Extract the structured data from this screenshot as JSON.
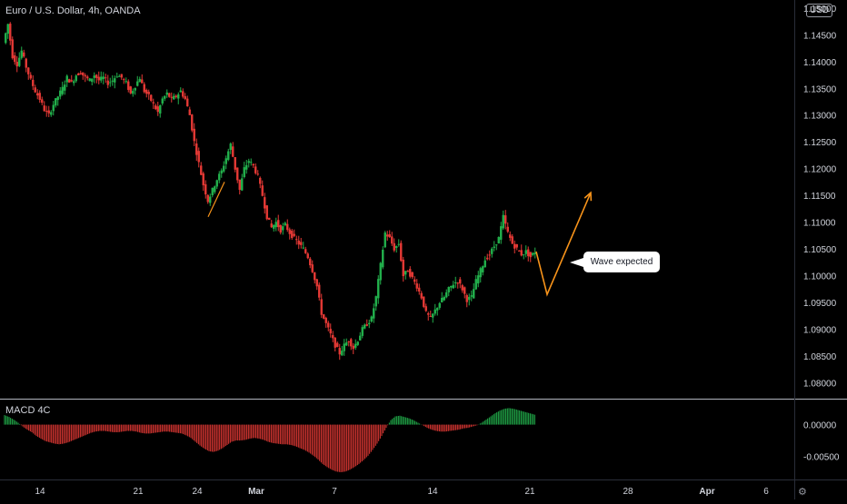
{
  "header": {
    "title": "Euro / U.S. Dollar, 4h, OANDA",
    "currency": "USD"
  },
  "macd_panel": {
    "label": "MACD 4C",
    "ticks": [
      "0.00000",
      "-0.00500"
    ]
  },
  "annotation": {
    "text": "Wave expected"
  },
  "icons": {
    "settings": "gear-icon"
  },
  "colors": {
    "up": "#26a69a",
    "up_bright": "#22b14c",
    "down": "#e53935",
    "wave": "#f7931a",
    "background": "#000000",
    "axis_text": "#d1d4dc"
  },
  "chart_data": [
    {
      "type": "candlestick",
      "title": "Euro / U.S. Dollar, 4h, OANDA",
      "xlabel": "",
      "ylabel": "",
      "x_ticks": [
        "14",
        "21",
        "24",
        "Mar",
        "7",
        "14",
        "21",
        "28",
        "Apr",
        "6"
      ],
      "y_ticks": [
        "1.15000",
        "1.14500",
        "1.14000",
        "1.13500",
        "1.13000",
        "1.12500",
        "1.12000",
        "1.11500",
        "1.11000",
        "1.10500",
        "1.10000",
        "1.09500",
        "1.09000",
        "1.08500",
        "1.08000"
      ],
      "ylim": [
        1.0772,
        1.1515
      ],
      "price_path": [
        [
          0,
          1.1435
        ],
        [
          5,
          1.147
        ],
        [
          10,
          1.141
        ],
        [
          15,
          1.1395
        ],
        [
          20,
          1.142
        ],
        [
          25,
          1.139
        ],
        [
          30,
          1.1365
        ],
        [
          35,
          1.1345
        ],
        [
          40,
          1.133
        ],
        [
          45,
          1.131
        ],
        [
          50,
          1.13
        ],
        [
          55,
          1.132
        ],
        [
          60,
          1.1335
        ],
        [
          65,
          1.135
        ],
        [
          70,
          1.137
        ],
        [
          75,
          1.136
        ],
        [
          80,
          1.1375
        ],
        [
          85,
          1.138
        ],
        [
          90,
          1.137
        ],
        [
          95,
          1.1365
        ],
        [
          100,
          1.1375
        ],
        [
          105,
          1.1365
        ],
        [
          110,
          1.137
        ],
        [
          115,
          1.136
        ],
        [
          120,
          1.1365
        ],
        [
          125,
          1.1375
        ],
        [
          130,
          1.137
        ],
        [
          135,
          1.136
        ],
        [
          140,
          1.134
        ],
        [
          145,
          1.1355
        ],
        [
          150,
          1.137
        ],
        [
          155,
          1.1345
        ],
        [
          160,
          1.1335
        ],
        [
          165,
          1.132
        ],
        [
          170,
          1.1305
        ],
        [
          175,
          1.133
        ],
        [
          180,
          1.134
        ],
        [
          185,
          1.133
        ],
        [
          190,
          1.1335
        ],
        [
          195,
          1.1345
        ],
        [
          200,
          1.133
        ],
        [
          205,
          1.13
        ],
        [
          210,
          1.125
        ],
        [
          215,
          1.121
        ],
        [
          220,
          1.117
        ],
        [
          225,
          1.114
        ],
        [
          230,
          1.116
        ],
        [
          235,
          1.118
        ],
        [
          240,
          1.1195
        ],
        [
          245,
          1.122
        ],
        [
          250,
          1.1245
        ],
        [
          255,
          1.12
        ],
        [
          260,
          1.116
        ],
        [
          265,
          1.12
        ],
        [
          270,
          1.1215
        ],
        [
          275,
          1.1205
        ],
        [
          280,
          1.1185
        ],
        [
          285,
          1.115
        ],
        [
          290,
          1.111
        ],
        [
          295,
          1.109
        ],
        [
          300,
          1.11
        ],
        [
          305,
          1.1085
        ],
        [
          310,
          1.1095
        ],
        [
          315,
          1.108
        ],
        [
          320,
          1.107
        ],
        [
          325,
          1.106
        ],
        [
          330,
          1.105
        ],
        [
          335,
          1.1035
        ],
        [
          340,
          1.101
        ],
        [
          345,
          1.098
        ],
        [
          350,
          1.093
        ],
        [
          355,
          1.091
        ],
        [
          360,
          1.089
        ],
        [
          365,
          1.087
        ],
        [
          370,
          1.0855
        ],
        [
          375,
          1.087
        ],
        [
          380,
          1.088
        ],
        [
          385,
          1.0865
        ],
        [
          390,
          1.088
        ],
        [
          395,
          1.09
        ],
        [
          400,
          1.091
        ],
        [
          405,
          1.092
        ],
        [
          410,
          1.096
        ],
        [
          415,
          1.102
        ],
        [
          420,
          1.108
        ],
        [
          425,
          1.107
        ],
        [
          430,
          1.105
        ],
        [
          435,
          1.106
        ],
        [
          440,
          1.1
        ],
        [
          445,
          1.101
        ],
        [
          450,
          1.0995
        ],
        [
          455,
          1.098
        ],
        [
          460,
          1.096
        ],
        [
          465,
          1.093
        ],
        [
          470,
          1.092
        ],
        [
          475,
          1.0935
        ],
        [
          480,
          1.095
        ],
        [
          485,
          1.096
        ],
        [
          490,
          1.0975
        ],
        [
          495,
          1.0985
        ],
        [
          500,
          1.099
        ],
        [
          505,
          1.0975
        ],
        [
          510,
          1.0955
        ],
        [
          515,
          1.096
        ],
        [
          520,
          1.099
        ],
        [
          525,
          1.101
        ],
        [
          530,
          1.103
        ],
        [
          535,
          1.104
        ],
        [
          540,
          1.1055
        ],
        [
          545,
          1.107
        ],
        [
          550,
          1.111
        ],
        [
          555,
          1.108
        ],
        [
          560,
          1.106
        ],
        [
          565,
          1.105
        ],
        [
          570,
          1.104
        ],
        [
          575,
          1.1045
        ],
        [
          580,
          1.1035
        ],
        [
          585,
          1.1045
        ]
      ],
      "wave_path": [
        [
          585,
          1.1045
        ],
        [
          597,
          1.0965
        ],
        [
          645,
          1.1155
        ]
      ],
      "highlight_path": [
        [
          224,
          1.111
        ],
        [
          242,
          1.1175
        ]
      ]
    },
    {
      "type": "histogram",
      "name": "MACD 4C",
      "ylim": [
        -0.0085,
        0.0038
      ],
      "y_ticks": [
        0.0,
        -0.005
      ],
      "values": [
        [
          0,
          0.0015
        ],
        [
          5,
          0.0012
        ],
        [
          10,
          0.0008
        ],
        [
          15,
          0.0003
        ],
        [
          20,
          -0.0003
        ],
        [
          25,
          -0.0008
        ],
        [
          30,
          -0.0012
        ],
        [
          35,
          -0.0018
        ],
        [
          40,
          -0.0022
        ],
        [
          45,
          -0.0026
        ],
        [
          50,
          -0.0028
        ],
        [
          55,
          -0.003
        ],
        [
          60,
          -0.0031
        ],
        [
          65,
          -0.003
        ],
        [
          70,
          -0.0028
        ],
        [
          75,
          -0.0025
        ],
        [
          80,
          -0.0022
        ],
        [
          85,
          -0.0019
        ],
        [
          90,
          -0.0016
        ],
        [
          95,
          -0.0013
        ],
        [
          100,
          -0.0011
        ],
        [
          105,
          -0.001
        ],
        [
          110,
          -0.001
        ],
        [
          115,
          -0.0011
        ],
        [
          120,
          -0.0012
        ],
        [
          125,
          -0.0012
        ],
        [
          130,
          -0.0011
        ],
        [
          135,
          -0.001
        ],
        [
          140,
          -0.001
        ],
        [
          145,
          -0.0011
        ],
        [
          150,
          -0.0013
        ],
        [
          155,
          -0.0014
        ],
        [
          160,
          -0.0014
        ],
        [
          165,
          -0.0013
        ],
        [
          170,
          -0.0012
        ],
        [
          175,
          -0.0011
        ],
        [
          180,
          -0.0011
        ],
        [
          185,
          -0.0012
        ],
        [
          190,
          -0.0013
        ],
        [
          195,
          -0.0014
        ],
        [
          200,
          -0.0017
        ],
        [
          205,
          -0.0021
        ],
        [
          210,
          -0.0027
        ],
        [
          215,
          -0.0033
        ],
        [
          220,
          -0.0038
        ],
        [
          225,
          -0.0042
        ],
        [
          230,
          -0.0043
        ],
        [
          235,
          -0.0041
        ],
        [
          240,
          -0.0037
        ],
        [
          245,
          -0.0032
        ],
        [
          250,
          -0.0027
        ],
        [
          255,
          -0.0025
        ],
        [
          260,
          -0.0025
        ],
        [
          265,
          -0.0024
        ],
        [
          270,
          -0.0022
        ],
        [
          275,
          -0.0021
        ],
        [
          280,
          -0.0022
        ],
        [
          285,
          -0.0024
        ],
        [
          290,
          -0.0027
        ],
        [
          295,
          -0.0029
        ],
        [
          300,
          -0.003
        ],
        [
          305,
          -0.0031
        ],
        [
          310,
          -0.0031
        ],
        [
          315,
          -0.0032
        ],
        [
          320,
          -0.0034
        ],
        [
          325,
          -0.0037
        ],
        [
          330,
          -0.004
        ],
        [
          335,
          -0.0044
        ],
        [
          340,
          -0.0049
        ],
        [
          345,
          -0.0055
        ],
        [
          350,
          -0.0062
        ],
        [
          355,
          -0.0067
        ],
        [
          360,
          -0.0071
        ],
        [
          365,
          -0.0074
        ],
        [
          370,
          -0.0075
        ],
        [
          375,
          -0.0074
        ],
        [
          380,
          -0.0071
        ],
        [
          385,
          -0.0067
        ],
        [
          390,
          -0.0062
        ],
        [
          395,
          -0.0056
        ],
        [
          400,
          -0.0049
        ],
        [
          405,
          -0.004
        ],
        [
          410,
          -0.003
        ],
        [
          415,
          -0.0018
        ],
        [
          420,
          -0.0005
        ],
        [
          425,
          0.0007
        ],
        [
          430,
          0.0013
        ],
        [
          435,
          0.0014
        ],
        [
          440,
          0.0012
        ],
        [
          445,
          0.001
        ],
        [
          450,
          0.0007
        ],
        [
          455,
          0.0003
        ],
        [
          460,
          -0.0001
        ],
        [
          465,
          -0.0005
        ],
        [
          470,
          -0.0008
        ],
        [
          475,
          -0.001
        ],
        [
          480,
          -0.0011
        ],
        [
          485,
          -0.0011
        ],
        [
          490,
          -0.001
        ],
        [
          495,
          -0.0009
        ],
        [
          500,
          -0.0008
        ],
        [
          505,
          -0.0006
        ],
        [
          510,
          -0.0005
        ],
        [
          515,
          -0.0003
        ],
        [
          520,
          -0.0001
        ],
        [
          525,
          0.0003
        ],
        [
          530,
          0.0008
        ],
        [
          535,
          0.0013
        ],
        [
          540,
          0.0018
        ],
        [
          545,
          0.0022
        ],
        [
          550,
          0.0025
        ],
        [
          555,
          0.0026
        ],
        [
          560,
          0.0025
        ],
        [
          565,
          0.0023
        ],
        [
          570,
          0.0021
        ],
        [
          575,
          0.0019
        ],
        [
          580,
          0.0017
        ],
        [
          585,
          0.0015
        ]
      ]
    }
  ]
}
